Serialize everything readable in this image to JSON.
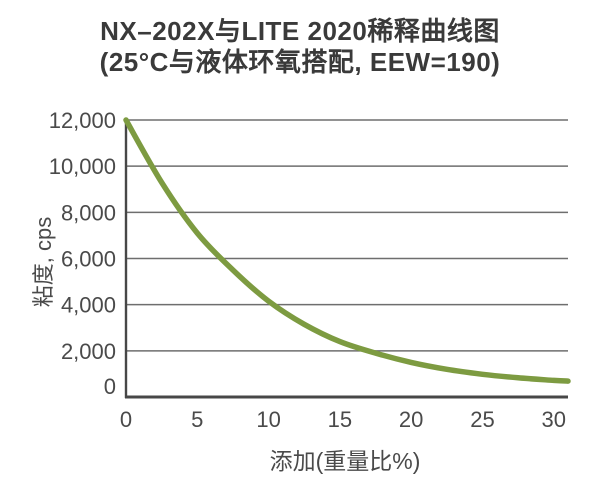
{
  "page": {
    "background": "#ffffff"
  },
  "colors": {
    "curve": "#7d9b41",
    "gridline": "#6e6e6e",
    "axis": "#474747",
    "title_text": "#3a3a3a",
    "tick_text": "#4a4a4a"
  },
  "chart_data": {
    "type": "line",
    "title": "NX–202X与LITE 2020稀释曲线图",
    "subtitle": "(25°C与液体环氧搭配, EEW=190)",
    "xlabel": "添加(重量比%)",
    "ylabel": "粘度, cps",
    "xlim": [
      0,
      31
    ],
    "ylim": [
      0,
      12000
    ],
    "x_ticks": [
      {
        "value": 0,
        "label": "0"
      },
      {
        "value": 5,
        "label": "5"
      },
      {
        "value": 10,
        "label": "10"
      },
      {
        "value": 15,
        "label": "15"
      },
      {
        "value": 20,
        "label": "20"
      },
      {
        "value": 25,
        "label": "25"
      },
      {
        "value": 30,
        "label": "30"
      }
    ],
    "y_ticks": [
      {
        "value": 0,
        "label": "0"
      },
      {
        "value": 2000,
        "label": "2,000"
      },
      {
        "value": 4000,
        "label": "4,000"
      },
      {
        "value": 6000,
        "label": "6,000"
      },
      {
        "value": 8000,
        "label": "8,000"
      },
      {
        "value": 10000,
        "label": "10,000"
      },
      {
        "value": 12000,
        "label": "12,000"
      }
    ],
    "grid": "horizontal-only",
    "legend": "none",
    "series": [
      {
        "color": "#7d9b41",
        "points": [
          [
            0,
            12000
          ],
          [
            2.5,
            9300
          ],
          [
            5,
            7100
          ],
          [
            7.5,
            5500
          ],
          [
            10,
            4150
          ],
          [
            12.5,
            3150
          ],
          [
            15,
            2400
          ],
          [
            17.5,
            1900
          ],
          [
            20,
            1500
          ],
          [
            22.5,
            1200
          ],
          [
            25,
            985
          ],
          [
            27.5,
            830
          ],
          [
            30,
            720
          ],
          [
            31,
            690
          ]
        ]
      }
    ]
  }
}
